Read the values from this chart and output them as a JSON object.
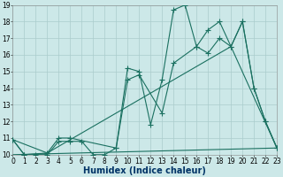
{
  "xlabel": "Humidex (Indice chaleur)",
  "bg_color": "#cce8e8",
  "grid_color": "#aacccc",
  "line_color": "#1a7060",
  "xlim": [
    0,
    23
  ],
  "ylim": [
    10,
    19
  ],
  "xticks": [
    0,
    1,
    2,
    3,
    4,
    5,
    6,
    7,
    8,
    9,
    10,
    11,
    12,
    13,
    14,
    15,
    16,
    17,
    18,
    19,
    20,
    21,
    22,
    23
  ],
  "yticks": [
    10,
    11,
    12,
    13,
    14,
    15,
    16,
    17,
    18,
    19
  ],
  "line1_x": [
    0,
    1,
    2,
    3,
    4,
    5,
    6,
    7,
    8,
    9,
    10,
    11,
    12,
    13,
    14,
    15,
    16,
    17,
    18,
    19,
    20,
    21,
    22,
    23
  ],
  "line1_y": [
    10.9,
    10.0,
    10.0,
    10.0,
    10.8,
    10.8,
    10.8,
    10.0,
    10.0,
    10.4,
    15.2,
    15.0,
    11.8,
    14.5,
    18.7,
    19.0,
    16.5,
    16.1,
    17.0,
    16.5,
    18.0,
    14.0,
    12.0,
    10.4
  ],
  "line2_x": [
    0,
    1,
    3,
    4,
    5,
    9,
    10,
    11,
    13,
    14,
    16,
    17,
    18,
    19,
    20,
    21,
    22,
    23
  ],
  "line2_y": [
    10.9,
    10.0,
    10.1,
    11.0,
    11.0,
    10.4,
    14.5,
    14.8,
    12.5,
    15.5,
    16.5,
    17.5,
    18.0,
    16.5,
    18.0,
    14.0,
    12.0,
    10.4
  ],
  "line3_x": [
    0,
    3,
    19,
    23
  ],
  "line3_y": [
    10.9,
    10.1,
    16.5,
    10.4
  ],
  "line4_x": [
    0,
    23
  ],
  "line4_y": [
    10.0,
    10.4
  ],
  "marker_size": 2.0,
  "lw": 0.8,
  "xlabel_fontsize": 7,
  "tick_fontsize": 5.5
}
